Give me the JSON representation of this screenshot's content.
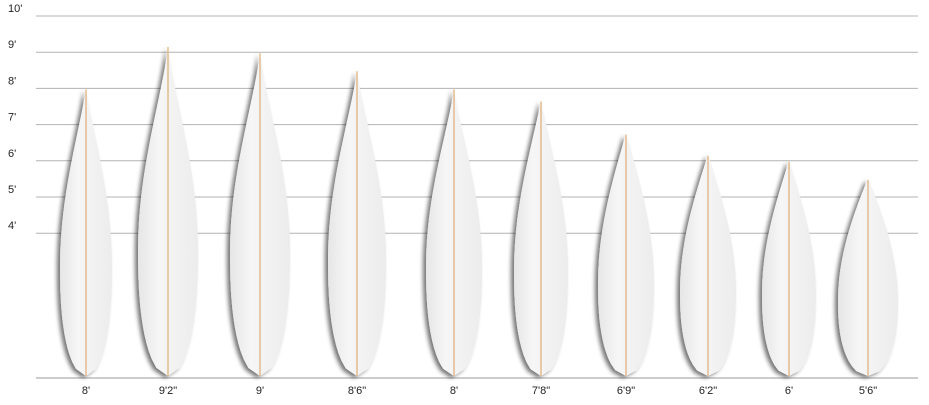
{
  "scale": {
    "unit_labels": [
      "10'",
      "9'",
      "8'",
      "7'",
      "6'",
      "5'",
      "4'"
    ],
    "values_ft": [
      10,
      9,
      8,
      7,
      6,
      5,
      4
    ]
  },
  "boards": [
    {
      "label": "8'",
      "length_ft": 8.0
    },
    {
      "label": "9'2\"",
      "length_ft": 9.17
    },
    {
      "label": "9'",
      "length_ft": 9.0
    },
    {
      "label": "8'6\"",
      "length_ft": 8.5
    },
    {
      "label": "8'",
      "length_ft": 8.0
    },
    {
      "label": "7'8\"",
      "length_ft": 7.67
    },
    {
      "label": "6'9\"",
      "length_ft": 6.75
    },
    {
      "label": "6'2\"",
      "length_ft": 6.17
    },
    {
      "label": "6'",
      "length_ft": 6.0
    },
    {
      "label": "5'6\"",
      "length_ft": 5.5
    }
  ],
  "colors": {
    "gridline": "#b3b3b3",
    "baseline": "#999999",
    "board_fill": "#efefef",
    "stringer": "#d9a05b",
    "label_text": "#222222"
  }
}
